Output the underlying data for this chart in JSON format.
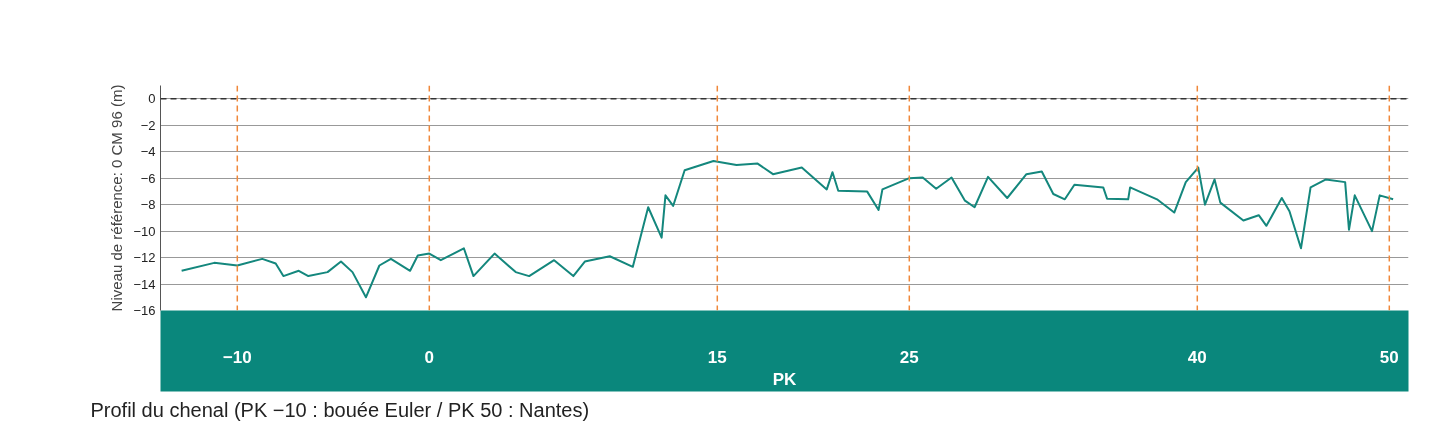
{
  "chart_data": {
    "type": "line",
    "xlabel": "PK",
    "ylabel": "Niveau de référence: 0 CM 96 (m)",
    "annotations": [
      "Profil du chenal (PK −10 : bouée Euler / PK 50 : Nantes)"
    ],
    "xlim": [
      -14,
      51
    ],
    "xticks": [
      -10,
      0,
      15,
      25,
      40,
      50
    ],
    "ylim": [
      -16,
      1
    ],
    "yticks": [
      0,
      -2,
      -4,
      -6,
      -8,
      -10,
      -12,
      -14,
      -16
    ],
    "grid": "y",
    "marker": "none",
    "line_style": "solid",
    "ref_lines": [
      {
        "axis": "y",
        "value": 0,
        "color": "#333333",
        "line_style": "dashed"
      },
      {
        "axis": "x",
        "value": -10,
        "color": "#f0883a",
        "line_style": "dashed"
      },
      {
        "axis": "x",
        "value": 0,
        "color": "#f0883a",
        "line_style": "dashed"
      },
      {
        "axis": "x",
        "value": 15,
        "color": "#f0883a",
        "line_style": "dashed"
      },
      {
        "axis": "x",
        "value": 25,
        "color": "#f0883a",
        "line_style": "dashed"
      },
      {
        "axis": "x",
        "value": 40,
        "color": "#f0883a",
        "line_style": "dashed"
      },
      {
        "axis": "x",
        "value": 50,
        "color": "#f0883a",
        "line_style": "dashed"
      }
    ],
    "series": [
      {
        "color": "#14877d",
        "x": [
          -12.9,
          -11.2,
          -10,
          -8.7,
          -8.0,
          -7.6,
          -6.8,
          -6.3,
          -5.3,
          -4.6,
          -4.0,
          -3.3,
          -2.6,
          -2.0,
          -1.0,
          -0.6,
          0,
          0.6,
          1.8,
          2.3,
          3.4,
          4.5,
          5.2,
          6.5,
          7.5,
          8.1,
          9.4,
          10.6,
          11.4,
          12.1,
          12.3,
          12.7,
          13.3,
          14.8,
          16.0,
          17.1,
          17.9,
          19.4,
          20.7,
          21.0,
          21.3,
          22.8,
          23.4,
          23.6,
          25,
          25.7,
          26.4,
          27.2,
          27.9,
          28.4,
          29.1,
          30.1,
          31.1,
          31.9,
          32.5,
          33.1,
          33.6,
          35.1,
          35.3,
          36.4,
          36.5,
          37.9,
          38.8,
          39.4,
          40.05,
          40.4,
          40.9,
          41.2,
          42.4,
          43.2,
          43.6,
          44.4,
          44.8,
          45.4,
          45.9,
          46.7,
          47.7,
          47.9,
          48.2,
          49.1,
          49.5,
          50.2
        ],
        "values": [
          -13.0,
          -12.4,
          -12.6,
          -12.1,
          -12.45,
          -13.4,
          -13.0,
          -13.4,
          -13.1,
          -12.3,
          -13.1,
          -15.0,
          -12.6,
          -12.1,
          -13.0,
          -11.85,
          -11.7,
          -12.2,
          -11.3,
          -13.4,
          -11.7,
          -13.1,
          -13.4,
          -12.2,
          -13.4,
          -12.3,
          -11.9,
          -12.7,
          -8.2,
          -10.5,
          -7.3,
          -8.1,
          -5.4,
          -4.7,
          -5.0,
          -4.9,
          -5.7,
          -5.2,
          -6.85,
          -5.55,
          -6.95,
          -7.0,
          -8.4,
          -6.85,
          -6.0,
          -5.95,
          -6.8,
          -5.95,
          -7.7,
          -8.2,
          -5.9,
          -7.5,
          -5.7,
          -5.5,
          -7.2,
          -7.6,
          -6.5,
          -6.7,
          -7.55,
          -7.6,
          -6.7,
          -7.6,
          -8.6,
          -6.3,
          -5.2,
          -8.0,
          -6.1,
          -7.85,
          -9.2,
          -8.8,
          -9.6,
          -7.5,
          -8.5,
          -11.3,
          -6.7,
          -6.1,
          -6.3,
          -9.9,
          -7.3,
          -10.0,
          -7.3,
          -7.6
        ]
      }
    ]
  }
}
